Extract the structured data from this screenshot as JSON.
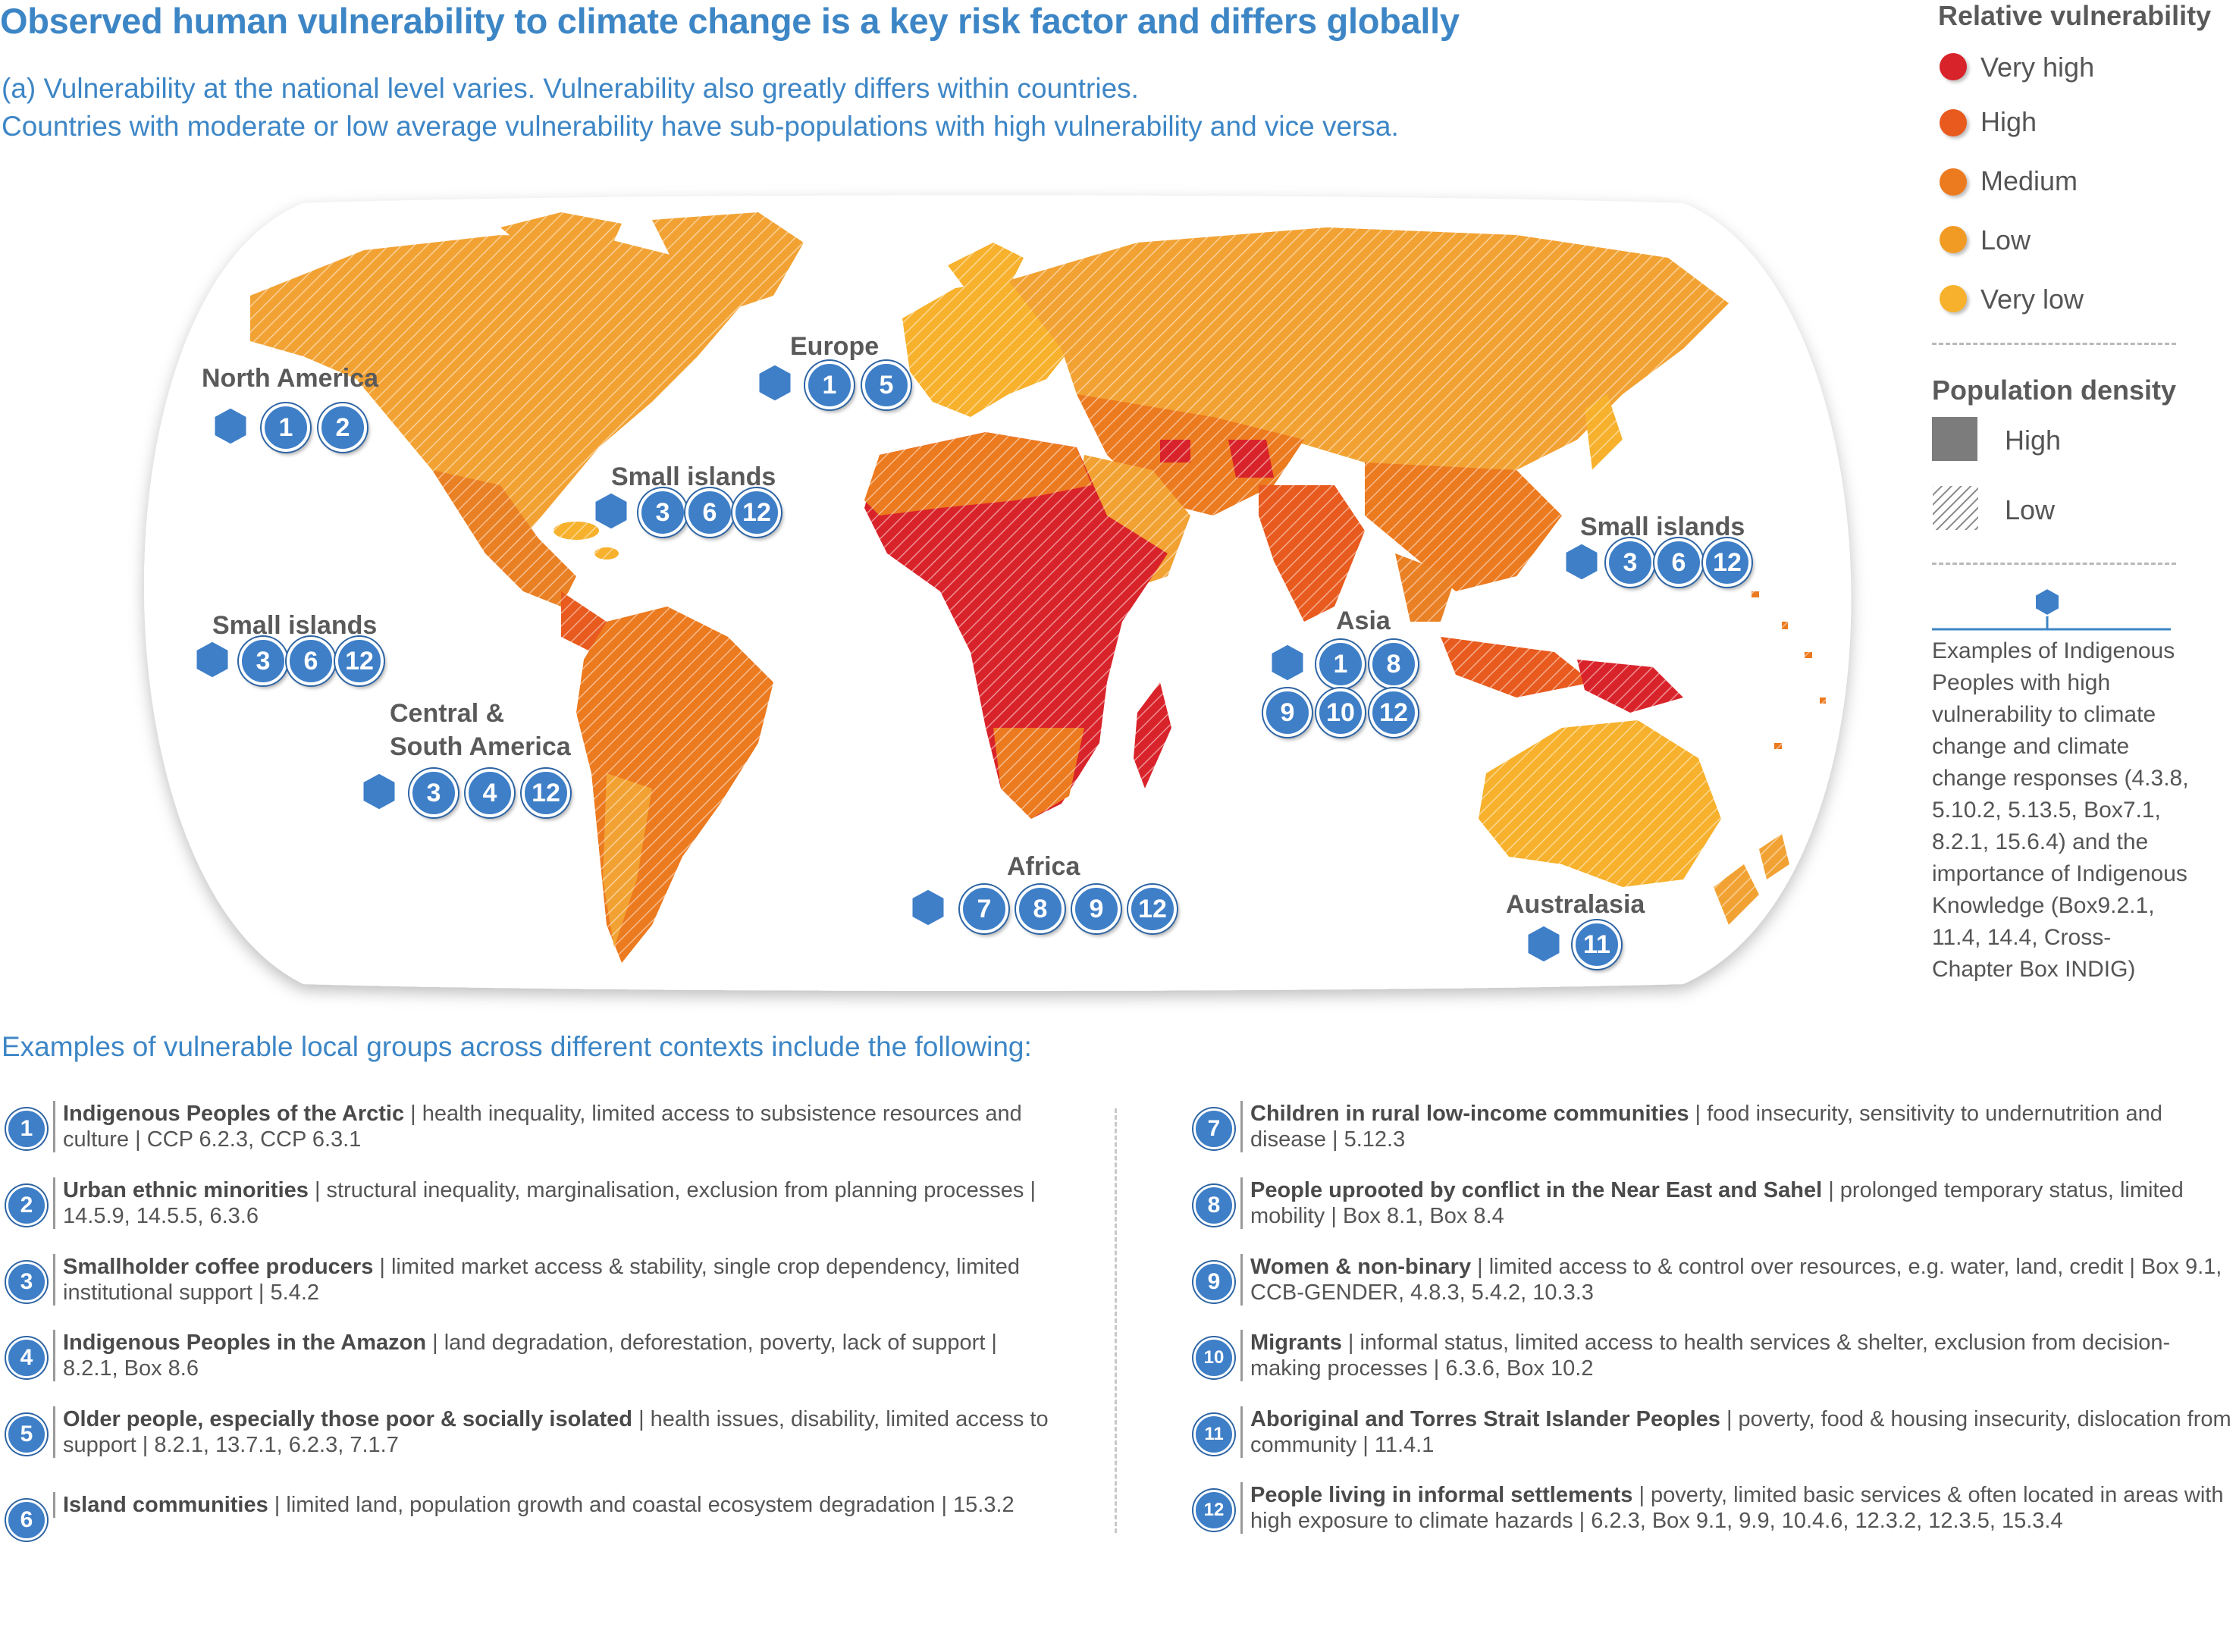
{
  "header": {
    "title": "Observed human vulnerability to climate change is a key risk factor and differs globally",
    "subtitle_line1": "(a) Vulnerability at the national level varies. Vulnerability also greatly differs within countries.",
    "subtitle_line2": "Countries with moderate or low average vulnerability have sub-populations with high vulnerability and vice versa."
  },
  "legend": {
    "vulnerability_title": "Relative vulnerability",
    "vulnerability_levels": [
      {
        "label": "Very high",
        "color": "#d9232a"
      },
      {
        "label": "High",
        "color": "#e85a1e"
      },
      {
        "label": "Medium",
        "color": "#ec7a1f"
      },
      {
        "label": "Low",
        "color": "#f19a24"
      },
      {
        "label": "Very low",
        "color": "#f7b12c"
      }
    ],
    "density_title": "Population density",
    "density_high": "High",
    "density_low": "Low",
    "indigenous_note": "Examples of Indigenous Peoples with high vulnerability to climate change and climate change responses (4.3.8, 5.10.2, 5.13.5, Box7.1, 8.2.1, 15.6.4) and the importance of Indigenous Knowledge (Box9.2.1, 11.4, 14.4, Cross-Chapter Box INDIG)"
  },
  "map": {
    "regions": [
      {
        "name": "North America",
        "indigenous": true,
        "groups": [
          "1",
          "2"
        ]
      },
      {
        "name": "Europe",
        "indigenous": true,
        "groups": [
          "1",
          "5"
        ]
      },
      {
        "name": "Small islands",
        "indigenous": true,
        "groups": [
          "3",
          "6",
          "12"
        ]
      },
      {
        "name": "Small islands",
        "indigenous": true,
        "groups": [
          "3",
          "6",
          "12"
        ]
      },
      {
        "name": "Central &",
        "name2": "South America",
        "indigenous": true,
        "groups": [
          "3",
          "4",
          "12"
        ]
      },
      {
        "name": "Africa",
        "indigenous": true,
        "groups": [
          "7",
          "8",
          "9",
          "12"
        ]
      },
      {
        "name": "Asia",
        "indigenous": true,
        "groups": [
          "1",
          "8",
          "9",
          "10",
          "12"
        ]
      },
      {
        "name": "Small islands",
        "indigenous": true,
        "groups": [
          "3",
          "6",
          "12"
        ]
      },
      {
        "name": "Australasia",
        "indigenous": true,
        "groups": [
          "11"
        ]
      }
    ]
  },
  "list": {
    "heading": "Examples of vulnerable local groups across different contexts include the following:",
    "items": [
      {
        "n": "1",
        "bold": "Indigenous Peoples of the Arctic",
        "text": " | health inequality, limited access to subsistence resources and culture | CCP 6.2.3, CCP 6.3.1"
      },
      {
        "n": "2",
        "bold": "Urban ethnic minorities",
        "text": " | structural inequality, marginalisation, exclusion from planning processes | 14.5.9, 14.5.5, 6.3.6"
      },
      {
        "n": "3",
        "bold": "Smallholder coffee producers",
        "text": " | limited market access & stability, single crop dependency, limited institutional support | 5.4.2"
      },
      {
        "n": "4",
        "bold": "Indigenous Peoples in the Amazon",
        "text": " | land degradation, deforestation, poverty, lack of support | 8.2.1, Box 8.6"
      },
      {
        "n": "5",
        "bold": "Older people, especially those poor & socially isolated",
        "text": " | health issues, disability, limited access to support | 8.2.1, 13.7.1, 6.2.3, 7.1.7"
      },
      {
        "n": "6",
        "bold": "Island communities",
        "text": " | limited land, population growth and coastal ecosystem degradation | 15.3.2"
      },
      {
        "n": "7",
        "bold": "Children in rural low-income communities",
        "text": " | food insecurity, sensitivity to undernutrition and disease | 5.12.3"
      },
      {
        "n": "8",
        "bold": "People uprooted by conflict in the Near East and Sahel",
        "text": " | prolonged temporary status, limited mobility | Box 8.1, Box 8.4"
      },
      {
        "n": "9",
        "bold": "Women & non-binary",
        "text": " | limited access to & control over resources, e.g. water, land, credit | Box 9.1, CCB-GENDER, 4.8.3, 5.4.2, 10.3.3"
      },
      {
        "n": "10",
        "bold": "Migrants",
        "text": " | informal status, limited access to health services & shelter, exclusion from decision-making processes | 6.3.6, Box 10.2"
      },
      {
        "n": "11",
        "bold": "Aboriginal and Torres Strait Islander Peoples",
        "text": " | poverty, food & housing insecurity, dislocation from community | 11.4.1"
      },
      {
        "n": "12",
        "bold": "People living in informal settlements",
        "text": " | poverty, limited basic services & often located in areas with high exposure to climate hazards | 6.2.3, Box 9.1, 9.9, 10.4.6, 12.3.2, 12.3.5, 15.3.4"
      }
    ]
  }
}
